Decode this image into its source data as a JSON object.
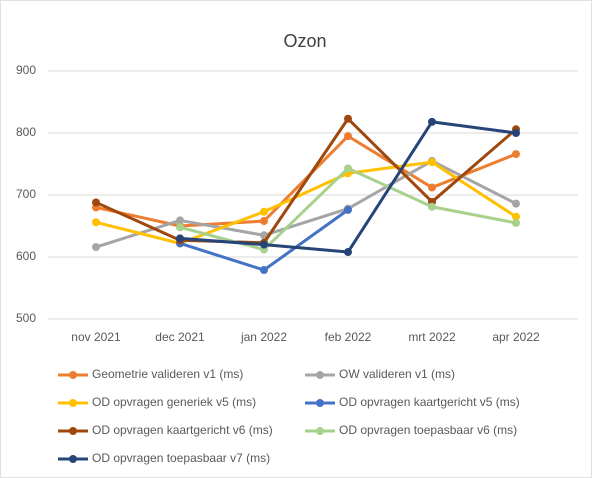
{
  "chart_data": {
    "type": "line",
    "title": "Ozon",
    "categories": [
      "nov 2021",
      "dec 2021",
      "jan 2022",
      "feb 2022",
      "mrt 2022",
      "apr 2022"
    ],
    "ylim": [
      500,
      900
    ],
    "yticks": [
      500,
      600,
      700,
      800,
      900
    ],
    "grid": true,
    "legend": "bottom",
    "series": [
      {
        "name": "Geometrie valideren v1 (ms)",
        "color": "#ed7d31",
        "values": [
          680,
          650,
          658,
          795,
          712,
          766
        ]
      },
      {
        "name": "OW valideren v1 (ms)",
        "color": "#a5a5a5",
        "values": [
          616,
          659,
          635,
          678,
          755,
          686
        ]
      },
      {
        "name": "OD opvragen generiek v5 (ms)",
        "color": "#ffc000",
        "values": [
          656,
          622,
          673,
          735,
          753,
          665
        ]
      },
      {
        "name": "OD opvragen kaartgericht v5 (ms)",
        "color": "#4472c4",
        "values": [
          null,
          622,
          579,
          676,
          null,
          null
        ]
      },
      {
        "name": "OD opvragen kaartgericht v6 (ms)",
        "color": "#9e480e",
        "values": [
          688,
          627,
          623,
          823,
          689,
          806
        ]
      },
      {
        "name": "OD opvragen toepasbaar v6 (ms)",
        "color": "#a9d18e",
        "values": [
          null,
          648,
          612,
          743,
          681,
          655
        ]
      },
      {
        "name": "OD opvragen toepasbaar v7 (ms)",
        "color": "#264478",
        "values": [
          null,
          630,
          620,
          608,
          818,
          800
        ]
      }
    ]
  }
}
